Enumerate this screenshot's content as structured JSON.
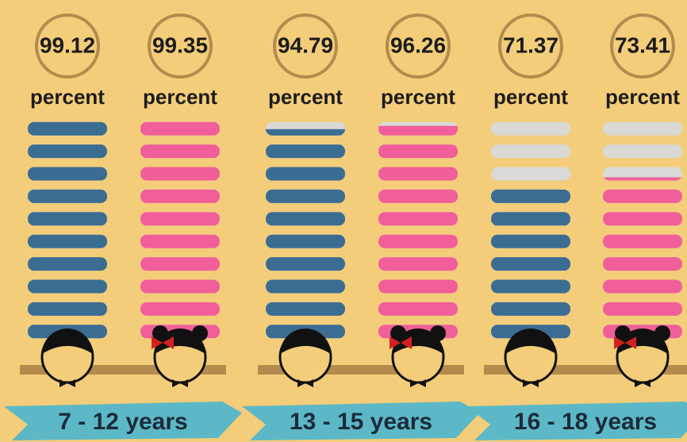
{
  "colors": [
    "#3b6d93",
    "#f05f9a"
  ],
  "empty_color": "#d9d9d6",
  "groups": [
    {
      "label": "7 - 12 years",
      "items": [
        {
          "value": 99.12,
          "unit": "percent"
        },
        {
          "value": 99.35,
          "unit": "percent"
        }
      ]
    },
    {
      "label": "13 - 15 years",
      "items": [
        {
          "value": 94.79,
          "unit": "percent"
        },
        {
          "value": 96.26,
          "unit": "percent"
        }
      ]
    },
    {
      "label": "16 - 18 years",
      "items": [
        {
          "value": 71.37,
          "unit": "percent"
        },
        {
          "value": 73.41,
          "unit": "percent"
        }
      ]
    }
  ]
}
